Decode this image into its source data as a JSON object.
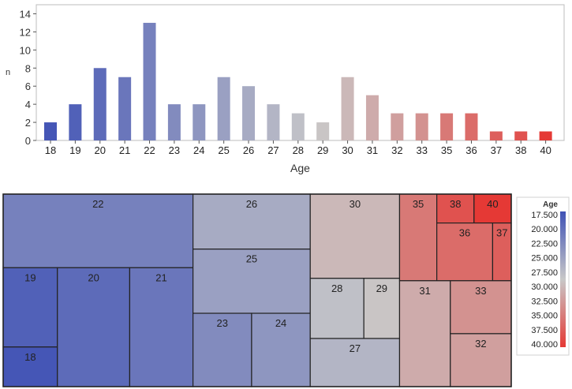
{
  "bar_chart": {
    "ylabel": "n",
    "xlabel": "Age",
    "y_ticks": [
      "0",
      "2",
      "4",
      "6",
      "8",
      "10",
      "12",
      "14"
    ]
  },
  "treemap": {
    "legend_title": "Age",
    "legend_labels": [
      "17.500",
      "20.000",
      "22.500",
      "25.000",
      "27.500",
      "30.000",
      "32.500",
      "35.000",
      "37.500",
      "40.000"
    ]
  },
  "chart_data": [
    {
      "type": "bar",
      "xlabel": "Age",
      "ylabel": "n",
      "ylim": [
        0,
        15
      ],
      "grid": false,
      "categories": [
        "18",
        "19",
        "20",
        "21",
        "22",
        "23",
        "24",
        "25",
        "26",
        "27",
        "28",
        "29",
        "30",
        "31",
        "32",
        "33",
        "35",
        "36",
        "37",
        "38",
        "40"
      ],
      "values": [
        2,
        4,
        8,
        7,
        13,
        4,
        4,
        7,
        6,
        4,
        3,
        2,
        7,
        5,
        3,
        3,
        3,
        3,
        1,
        1,
        1
      ],
      "color_scale": {
        "low": "#3f51b5",
        "mid": "#c8c8c8",
        "high": "#e53935"
      }
    },
    {
      "type": "treemap",
      "legend_title": "Age",
      "legend_placement": "right",
      "color_range": [
        17.5,
        40.0
      ],
      "nodes": [
        {
          "label": "22",
          "value": 13
        },
        {
          "label": "19",
          "value": 4
        },
        {
          "label": "18",
          "value": 2
        },
        {
          "label": "20",
          "value": 8
        },
        {
          "label": "21",
          "value": 7
        },
        {
          "label": "26",
          "value": 6
        },
        {
          "label": "25",
          "value": 7
        },
        {
          "label": "23",
          "value": 4
        },
        {
          "label": "24",
          "value": 4
        },
        {
          "label": "30",
          "value": 7
        },
        {
          "label": "28",
          "value": 3
        },
        {
          "label": "29",
          "value": 2
        },
        {
          "label": "27",
          "value": 4
        },
        {
          "label": "35",
          "value": 3
        },
        {
          "label": "38",
          "value": 1
        },
        {
          "label": "40",
          "value": 1
        },
        {
          "label": "36",
          "value": 3
        },
        {
          "label": "37",
          "value": 1
        },
        {
          "label": "31",
          "value": 5
        },
        {
          "label": "33",
          "value": 3
        },
        {
          "label": "32",
          "value": 3
        }
      ]
    }
  ]
}
